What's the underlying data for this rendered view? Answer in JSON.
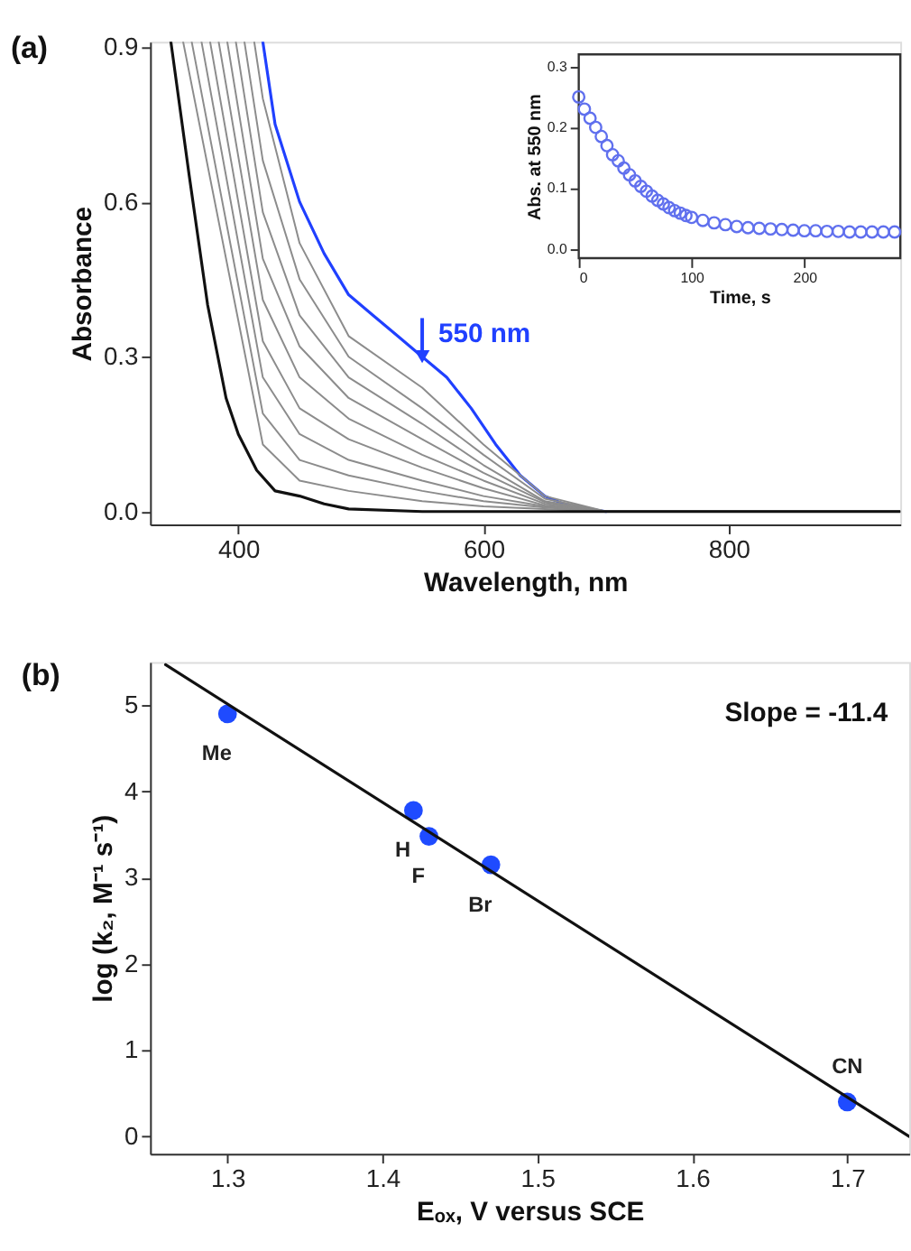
{
  "chart_data": [
    {
      "type": "line",
      "xlabel": "Wavelength, nm",
      "ylabel": "Absorbance",
      "xlim": [
        328,
        940
      ],
      "ylim": [
        -0.025,
        0.91
      ],
      "xticks": [
        400,
        600,
        800
      ],
      "yticks": [
        {
          "value": 0,
          "label": "0.0"
        },
        {
          "value": 0.3,
          "label": "0.3"
        },
        {
          "value": 0.6,
          "label": "0.6"
        },
        {
          "value": 0.9,
          "label": "0.9"
        }
      ],
      "grid": false,
      "marker": "none",
      "line_style": "solid",
      "annotations": [
        "(a)",
        {
          "text": "550 nm",
          "x": 550,
          "y": 0.3
        }
      ],
      "series": [
        {
          "color": "#2040ff",
          "x": [
            420,
            430,
            450,
            470,
            490,
            510,
            530,
            550,
            570,
            590,
            610,
            630,
            650,
            670,
            700
          ],
          "values": [
            0.91,
            0.75,
            0.6,
            0.5,
            0.42,
            0.38,
            0.34,
            0.3,
            0.26,
            0.2,
            0.13,
            0.07,
            0.03,
            0.01,
            0.0
          ]
        },
        {
          "color": "#8c8c8c",
          "x": [
            413,
            420,
            450,
            490,
            550,
            600,
            650,
            700,
            940
          ],
          "values": [
            0.91,
            0.8,
            0.52,
            0.34,
            0.24,
            0.13,
            0.03,
            0.0,
            0.0
          ]
        },
        {
          "color": "#8c8c8c",
          "x": [
            405,
            420,
            450,
            490,
            550,
            600,
            650,
            700,
            940
          ],
          "values": [
            0.91,
            0.68,
            0.45,
            0.3,
            0.2,
            0.11,
            0.025,
            0.0,
            0.0
          ]
        },
        {
          "color": "#8c8c8c",
          "x": [
            398,
            420,
            450,
            490,
            550,
            600,
            650,
            700,
            940
          ],
          "values": [
            0.91,
            0.58,
            0.38,
            0.26,
            0.17,
            0.09,
            0.02,
            0.0,
            0.0
          ]
        },
        {
          "color": "#8c8c8c",
          "x": [
            391,
            420,
            450,
            490,
            550,
            600,
            650,
            700,
            940
          ],
          "values": [
            0.91,
            0.49,
            0.32,
            0.22,
            0.14,
            0.075,
            0.018,
            0.0,
            0.0
          ]
        },
        {
          "color": "#8c8c8c",
          "x": [
            384,
            420,
            450,
            490,
            550,
            600,
            650,
            700,
            940
          ],
          "values": [
            0.91,
            0.41,
            0.26,
            0.18,
            0.11,
            0.06,
            0.015,
            0.0,
            0.0
          ]
        },
        {
          "color": "#8c8c8c",
          "x": [
            377,
            420,
            450,
            490,
            550,
            600,
            650,
            700,
            940
          ],
          "values": [
            0.91,
            0.33,
            0.2,
            0.14,
            0.085,
            0.045,
            0.012,
            0.0,
            0.0
          ]
        },
        {
          "color": "#8c8c8c",
          "x": [
            370,
            420,
            450,
            490,
            550,
            600,
            650,
            700,
            940
          ],
          "values": [
            0.91,
            0.26,
            0.15,
            0.1,
            0.06,
            0.03,
            0.01,
            0.0,
            0.0
          ]
        },
        {
          "color": "#8c8c8c",
          "x": [
            362,
            420,
            450,
            490,
            550,
            600,
            650,
            700,
            940
          ],
          "values": [
            0.91,
            0.19,
            0.1,
            0.07,
            0.04,
            0.02,
            0.008,
            0.0,
            0.0
          ]
        },
        {
          "color": "#8c8c8c",
          "x": [
            355,
            420,
            450,
            490,
            550,
            600,
            650,
            700,
            940
          ],
          "values": [
            0.91,
            0.13,
            0.06,
            0.04,
            0.02,
            0.01,
            0.005,
            0.0,
            0.0
          ]
        },
        {
          "color": "#111111",
          "x": [
            345,
            360,
            375,
            390,
            400,
            415,
            430,
            450,
            470,
            490,
            550,
            700,
            940
          ],
          "values": [
            0.91,
            0.65,
            0.4,
            0.22,
            0.15,
            0.08,
            0.04,
            0.03,
            0.015,
            0.005,
            0.0,
            0.0,
            0.0
          ]
        }
      ]
    },
    {
      "type": "scatter",
      "xlabel": "Time, s",
      "ylabel": "Abs. at 550 nm",
      "xlim": [
        0,
        285
      ],
      "ylim": [
        -0.015,
        0.32
      ],
      "xticks": [
        0,
        100,
        200
      ],
      "yticks": [
        {
          "value": 0,
          "label": "0.0"
        },
        {
          "value": 0.1,
          "label": "0.1"
        },
        {
          "value": 0.2,
          "label": "0.2"
        },
        {
          "value": 0.3,
          "label": "0.3"
        }
      ],
      "grid": false,
      "marker": "circle",
      "series": [
        {
          "color": "#6070ee",
          "x": [
            0,
            5,
            10,
            15,
            20,
            25,
            30,
            35,
            40,
            45,
            50,
            55,
            60,
            65,
            70,
            75,
            80,
            85,
            90,
            95,
            100,
            110,
            120,
            130,
            140,
            150,
            160,
            170,
            180,
            190,
            200,
            210,
            220,
            230,
            240,
            250,
            260,
            270,
            280
          ],
          "values": [
            0.25,
            0.23,
            0.215,
            0.2,
            0.185,
            0.17,
            0.155,
            0.145,
            0.133,
            0.122,
            0.112,
            0.103,
            0.095,
            0.087,
            0.08,
            0.074,
            0.068,
            0.063,
            0.059,
            0.055,
            0.052,
            0.047,
            0.043,
            0.04,
            0.037,
            0.035,
            0.034,
            0.033,
            0.032,
            0.031,
            0.03,
            0.03,
            0.029,
            0.029,
            0.028,
            0.028,
            0.028,
            0.028,
            0.028
          ]
        }
      ]
    },
    {
      "type": "scatter",
      "xlabel": "Eₒₓ, V versus SCE",
      "ylabel": "log (k₂, M⁻¹ s⁻¹)",
      "xlim": [
        1.25,
        1.74
      ],
      "ylim": [
        -0.2,
        5.5
      ],
      "xticks": [
        1.3,
        1.4,
        1.5,
        1.6,
        1.7
      ],
      "yticks": [
        0,
        1,
        2,
        3,
        4,
        5
      ],
      "grid": false,
      "marker": "circle",
      "annotations": [
        "(b)",
        "Slope = -11.4",
        {
          "text": "Me",
          "x": 1.3,
          "y": 4.9
        },
        {
          "text": "H",
          "x": 1.42,
          "y": 3.78
        },
        {
          "text": "F",
          "x": 1.43,
          "y": 3.48
        },
        {
          "text": "Br",
          "x": 1.47,
          "y": 3.15
        },
        {
          "text": "CN",
          "x": 1.7,
          "y": 0.4
        }
      ],
      "series": [
        {
          "color": "#1f4bff",
          "x": [
            1.3,
            1.42,
            1.43,
            1.47,
            1.7
          ],
          "values": [
            4.9,
            3.78,
            3.48,
            3.15,
            0.4
          ]
        },
        {
          "type": "line",
          "marker": "none",
          "color": "#111111",
          "x": [
            1.26,
            1.74
          ],
          "values": [
            5.47,
            0.0
          ]
        }
      ]
    }
  ]
}
